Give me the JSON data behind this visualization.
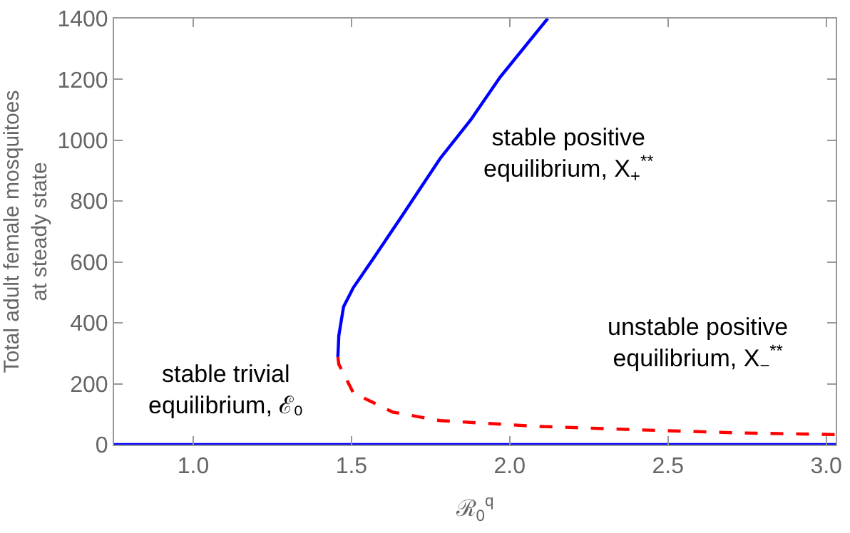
{
  "chart_data": {
    "type": "line",
    "xlabel": "ℛ$_{0}$$^{q}$",
    "ylabel": "Total adult female mosquitoes\nat steady state",
    "xlim": [
      0.75,
      3.03
    ],
    "xticks": [
      {
        "value": 1,
        "label": "1.0"
      },
      {
        "value": 1.5,
        "label": "1.5"
      },
      {
        "value": 2,
        "label": "2.0"
      },
      {
        "value": 2.5,
        "label": "2.5"
      },
      {
        "value": 3,
        "label": "3.0"
      }
    ],
    "ylim": [
      0,
      1400
    ],
    "yticks": [
      0,
      200,
      400,
      600,
      800,
      1000,
      1200,
      1400
    ],
    "marker": "none",
    "series": [
      {
        "color": "#0000ff",
        "line_style": "solid",
        "x": [
          0.75,
          3.03
        ],
        "values": [
          0,
          0
        ]
      },
      {
        "color": "#0000ff",
        "line_style": "solid",
        "x": [
          1.457,
          1.46,
          1.475,
          1.506,
          1.568,
          1.66,
          1.78,
          1.876,
          1.97,
          2.12
        ],
        "values": [
          288,
          358,
          453,
          516,
          610,
          752,
          940,
          1066,
          1208,
          1400
        ]
      },
      {
        "color": "#ff0000",
        "line_style": "dashed",
        "x": [
          1.457,
          1.46,
          1.506,
          1.63,
          1.78,
          2.09,
          2.4,
          2.71,
          3.03
        ],
        "values": [
          288,
          264,
          170,
          107,
          79,
          60,
          49,
          39,
          33
        ]
      }
    ],
    "annotations": [
      "stable trivial\nequilibrium, ℰ₀",
      "stable positive\nequilibrium, X$_{+}$$^{**}$",
      "unstable positive\nequilibrium, X$_{−}$$^{**}$"
    ]
  }
}
